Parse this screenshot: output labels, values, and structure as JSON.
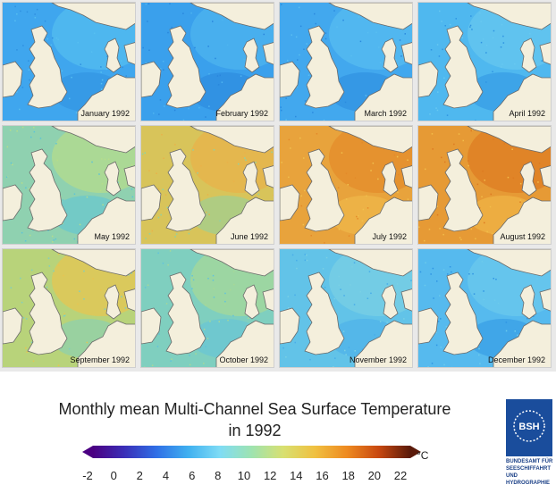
{
  "panels": [
    {
      "label": "January 1992",
      "base": "#3fa6ee",
      "shade": "#56bff0",
      "speck": "#2f8fe0"
    },
    {
      "label": "February 1992",
      "base": "#3aa0ec",
      "shade": "#4fb5ef",
      "speck": "#2a86dc"
    },
    {
      "label": "March 1992",
      "base": "#42a8ee",
      "shade": "#59bef1",
      "speck": "#2b8ade"
    },
    {
      "label": "April 1992",
      "base": "#4fb8ef",
      "shade": "#68c8f0",
      "speck": "#2f94e2"
    },
    {
      "label": "May 1992",
      "base": "#8fd1b0",
      "shade": "#b6dd8a",
      "speck": "#5cc4d8"
    },
    {
      "label": "June 1992",
      "base": "#d8c45a",
      "shade": "#eab249",
      "speck": "#8ed3a4"
    },
    {
      "label": "July 1992",
      "base": "#e8a33c",
      "shade": "#e48a2a",
      "speck": "#f0c04e"
    },
    {
      "label": "August 1992",
      "base": "#e69a35",
      "shade": "#dd7b22",
      "speck": "#f2bd4a"
    },
    {
      "label": "September 1992",
      "base": "#b8d37a",
      "shade": "#e8c450",
      "speck": "#7fcfc0"
    },
    {
      "label": "October 1992",
      "base": "#7fcfbf",
      "shade": "#a8d896",
      "speck": "#62c2dc"
    },
    {
      "label": "November 1992",
      "base": "#62c3e8",
      "shade": "#7ad0e4",
      "speck": "#48ade9"
    },
    {
      "label": "December 1992",
      "base": "#56baee",
      "shade": "#6ccaec",
      "speck": "#3095e3"
    }
  ],
  "title": {
    "line1": "Monthly mean Multi-Channel Sea Surface Temperature",
    "line2": "in 1992"
  },
  "legend": {
    "unit": "°C",
    "ticks": [
      "-2",
      "0",
      "2",
      "4",
      "6",
      "8",
      "10",
      "12",
      "14",
      "16",
      "18",
      "20",
      "22"
    ],
    "colors": [
      "#4b0082",
      "#3a2fb8",
      "#2f6fe6",
      "#3fb0f0",
      "#7fdcf5",
      "#9ee3b0",
      "#d8e070",
      "#f0c040",
      "#ee8a20",
      "#c84810",
      "#5a1a0a"
    ]
  },
  "logo": {
    "badge": "BSH",
    "lines": [
      "BUNDESAMT FÜR",
      "SEESCHIFFAHRT",
      "UND",
      "HYDROGRAPHIE"
    ]
  },
  "land_color": "#f4efdc",
  "coast_color": "#6a6a6a"
}
